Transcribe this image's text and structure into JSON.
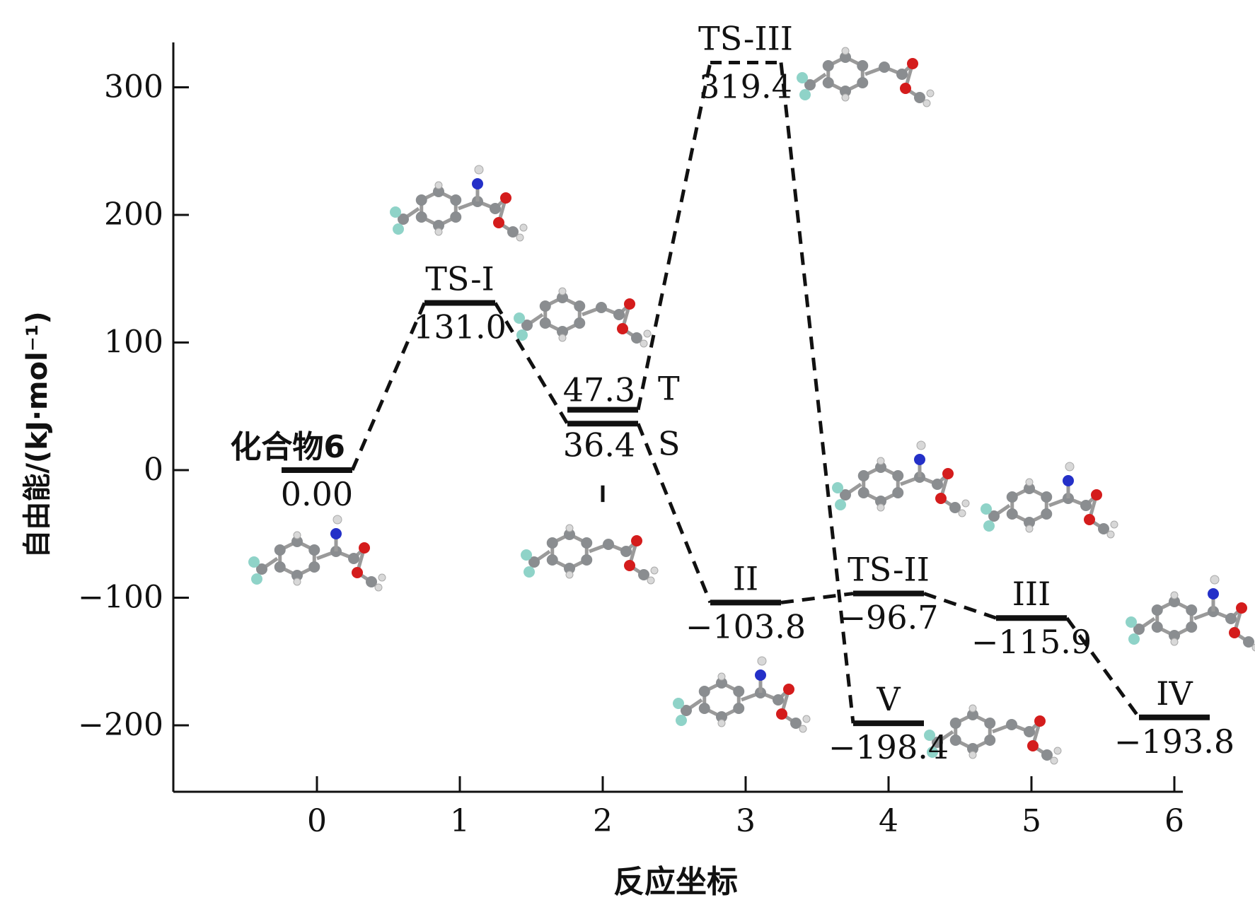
{
  "chart_data": {
    "type": "energy-profile",
    "xlabel": "反应坐标",
    "ylabel": "自由能/(kJ·mol⁻¹)",
    "xlim": [
      -1,
      6
    ],
    "ylim": [
      -255,
      330
    ],
    "x_ticks": [
      0,
      1,
      2,
      3,
      4,
      5,
      6
    ],
    "x_tick_labels": [
      "0",
      "1",
      "2",
      "3",
      "4",
      "5",
      "6"
    ],
    "y_ticks": [
      300,
      200,
      100,
      0,
      -100,
      -200
    ],
    "y_tick_labels": [
      "300",
      "200",
      "100",
      "0",
      "−100",
      "−200"
    ],
    "grid": false,
    "levels": [
      {
        "id": "cmpd6",
        "x": 0,
        "value": 0.0,
        "name": "化合物6",
        "value_label": "0.00",
        "name_pos": "left-above",
        "value_pos": "below"
      },
      {
        "id": "ts1",
        "x": 1,
        "value": 131.0,
        "name": "TS-I",
        "value_label": "131.0",
        "name_pos": "above",
        "value_pos": "below"
      },
      {
        "id": "t",
        "x": 2,
        "value": 47.3,
        "name": "T",
        "value_label": "47.3",
        "name_pos": "right",
        "value_pos": "above"
      },
      {
        "id": "s",
        "x": 2,
        "value": 36.4,
        "name": "S",
        "value_label": "36.4",
        "name_pos": "right",
        "value_pos": "below"
      },
      {
        "id": "ts3",
        "x": 3,
        "value": 319.4,
        "name": "TS-III",
        "value_label": "319.4",
        "name_pos": "above",
        "value_pos": "below",
        "style": "dashed"
      },
      {
        "id": "ii",
        "x": 3,
        "value": -103.8,
        "name": "II",
        "value_label": "−103.8",
        "name_pos": "above",
        "value_pos": "below"
      },
      {
        "id": "ts2",
        "x": 4,
        "value": -96.7,
        "name": "TS-II",
        "value_label": "−96.7",
        "name_pos": "above",
        "value_pos": "below"
      },
      {
        "id": "v",
        "x": 4,
        "value": -198.4,
        "name": "V",
        "value_label": "−198.4",
        "name_pos": "above",
        "value_pos": "below"
      },
      {
        "id": "iii",
        "x": 5,
        "value": -115.9,
        "name": "III",
        "value_label": "−115.9",
        "name_pos": "above",
        "value_pos": "below"
      },
      {
        "id": "iv",
        "x": 6,
        "value": -193.8,
        "name": "IV",
        "value_label": "−193.8",
        "name_pos": "above",
        "value_pos": "below"
      }
    ],
    "connections": [
      [
        "cmpd6",
        "ts1"
      ],
      [
        "ts1",
        "s"
      ],
      [
        "s",
        "ii"
      ],
      [
        "ii",
        "ts2"
      ],
      [
        "ts2",
        "iii"
      ],
      [
        "iii",
        "iv"
      ],
      [
        "t",
        "ts3"
      ],
      [
        "ts3",
        "v"
      ]
    ],
    "molecule_insets": [
      {
        "near": "cmpd6",
        "depicts": "diazo ester with N2 group"
      },
      {
        "near": "ts1",
        "depicts": "transition state losing N2"
      },
      {
        "near": "t",
        "depicts": "triplet carbene"
      },
      {
        "near": "s",
        "depicts": "singlet carbene"
      },
      {
        "near": "ts3",
        "depicts": "transition state TS-III"
      },
      {
        "near": "ii",
        "depicts": "ylide intermediate II"
      },
      {
        "near": "ts2",
        "depicts": "transition state TS-II"
      },
      {
        "near": "v",
        "depicts": "product V"
      },
      {
        "near": "iii",
        "depicts": "intermediate III"
      },
      {
        "near": "iv",
        "depicts": "product IV"
      }
    ],
    "colors": {
      "line": "#111111",
      "carbon": "#8a8d90",
      "hydrogen": "#d8d8d8",
      "oxygen": "#d41c1c",
      "nitrogen": "#2430c8",
      "fluorine": "#8fd3c8"
    }
  }
}
